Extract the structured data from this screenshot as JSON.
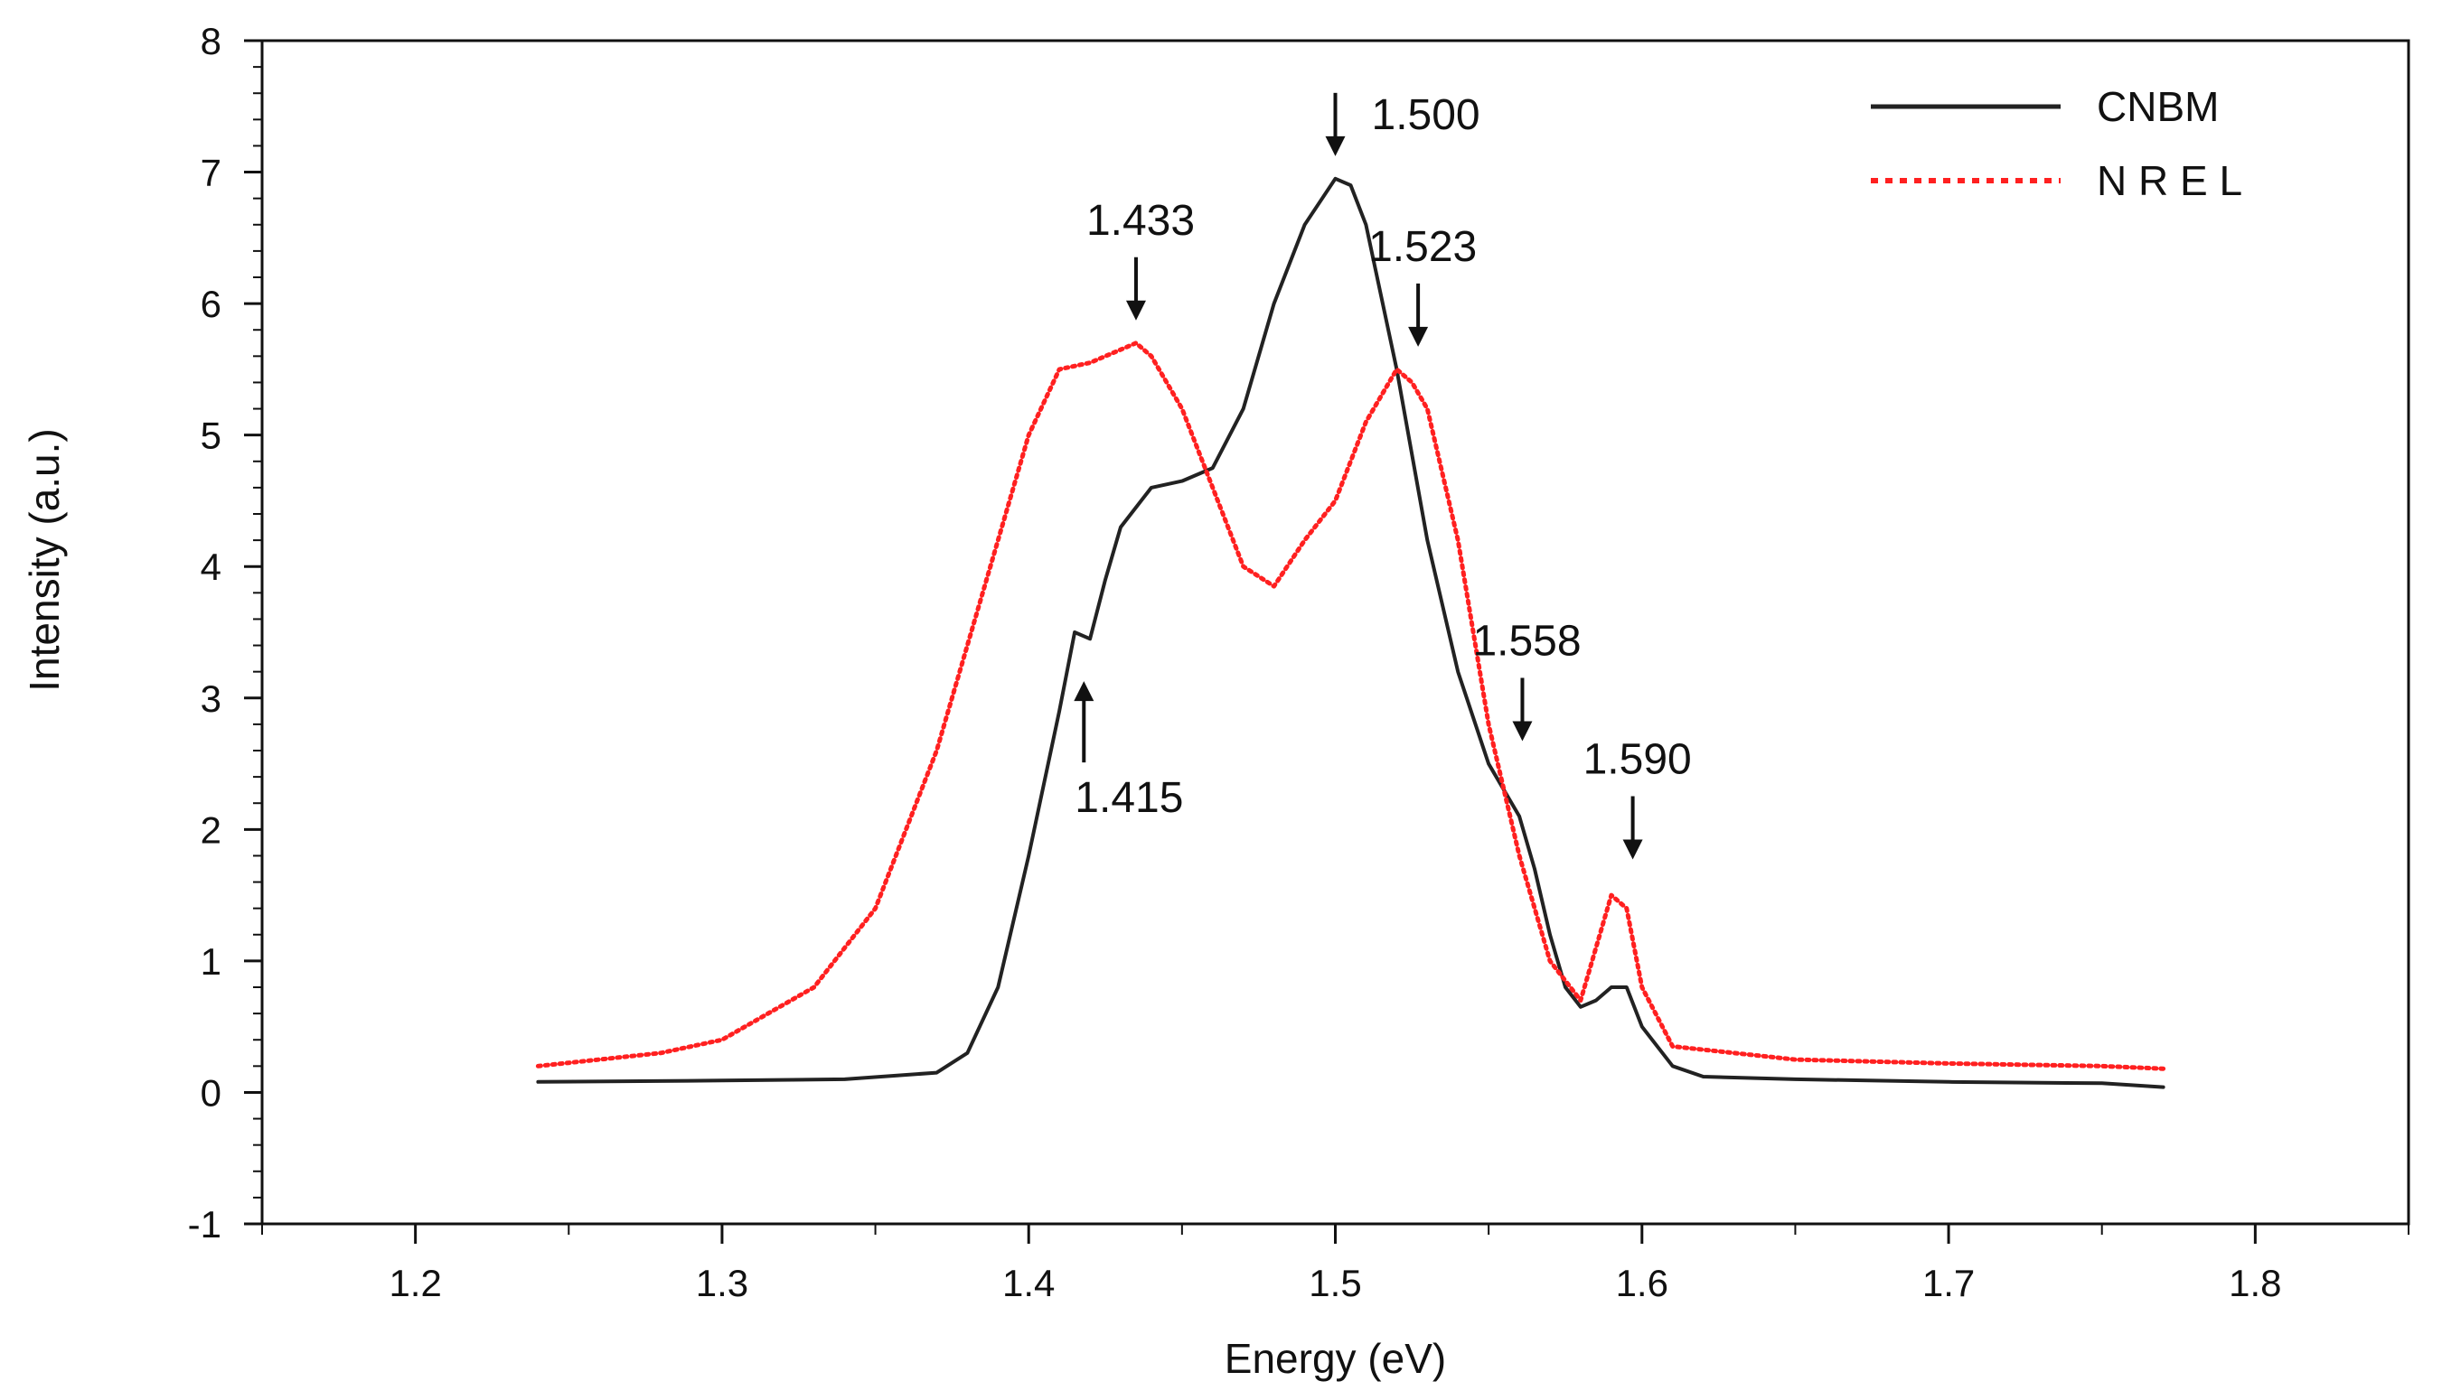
{
  "chart_data": {
    "type": "line",
    "title": "",
    "xlabel": "Energy  (eV)",
    "ylabel": "Intensity (a.u.)",
    "xlim": [
      1.15,
      1.85
    ],
    "ylim": [
      -1,
      8
    ],
    "x_ticks": [
      1.2,
      1.3,
      1.4,
      1.5,
      1.6,
      1.7,
      1.8
    ],
    "x_tick_labels": [
      "1.2",
      "1.3",
      "1.4",
      "1.5",
      "1.6",
      "1.7",
      "1.8"
    ],
    "y_ticks": [
      -1,
      0,
      1,
      2,
      3,
      4,
      5,
      6,
      7,
      8
    ],
    "y_tick_labels": [
      "-1",
      "0",
      "1",
      "2",
      "3",
      "4",
      "5",
      "6",
      "7",
      "8"
    ],
    "grid": false,
    "legend_position": "top-right",
    "series": [
      {
        "name": "CNBM",
        "color": "#222222",
        "style": "solid",
        "x": [
          1.24,
          1.3,
          1.34,
          1.37,
          1.38,
          1.39,
          1.4,
          1.41,
          1.415,
          1.42,
          1.425,
          1.43,
          1.44,
          1.45,
          1.46,
          1.47,
          1.48,
          1.49,
          1.5,
          1.505,
          1.51,
          1.52,
          1.53,
          1.54,
          1.55,
          1.56,
          1.565,
          1.57,
          1.575,
          1.58,
          1.585,
          1.59,
          1.595,
          1.6,
          1.61,
          1.62,
          1.65,
          1.7,
          1.75,
          1.77
        ],
        "values": [
          0.08,
          0.09,
          0.1,
          0.15,
          0.3,
          0.8,
          1.8,
          2.9,
          3.5,
          3.45,
          3.9,
          4.3,
          4.6,
          4.65,
          4.75,
          5.2,
          6.0,
          6.6,
          6.95,
          6.9,
          6.6,
          5.5,
          4.2,
          3.2,
          2.5,
          2.1,
          1.7,
          1.2,
          0.8,
          0.65,
          0.7,
          0.8,
          0.8,
          0.5,
          0.2,
          0.12,
          0.1,
          0.08,
          0.07,
          0.04
        ]
      },
      {
        "name": "N R E L",
        "color": "#ff2020",
        "style": "dotted",
        "x": [
          1.24,
          1.28,
          1.3,
          1.33,
          1.35,
          1.37,
          1.39,
          1.4,
          1.41,
          1.42,
          1.43,
          1.435,
          1.44,
          1.45,
          1.46,
          1.47,
          1.48,
          1.49,
          1.5,
          1.51,
          1.52,
          1.525,
          1.53,
          1.54,
          1.55,
          1.56,
          1.57,
          1.58,
          1.585,
          1.59,
          1.595,
          1.6,
          1.61,
          1.65,
          1.7,
          1.75,
          1.77
        ],
        "values": [
          0.2,
          0.3,
          0.4,
          0.8,
          1.4,
          2.6,
          4.2,
          5.0,
          5.5,
          5.55,
          5.65,
          5.7,
          5.6,
          5.2,
          4.6,
          4.0,
          3.85,
          4.2,
          4.5,
          5.1,
          5.5,
          5.4,
          5.2,
          4.2,
          2.8,
          1.8,
          1.0,
          0.7,
          1.1,
          1.5,
          1.4,
          0.8,
          0.35,
          0.25,
          0.22,
          0.2,
          0.18
        ]
      }
    ],
    "annotations": [
      {
        "label": "1.500",
        "x": 1.5,
        "y": 6.95,
        "direction": "down"
      },
      {
        "label": "1.433",
        "x": 1.435,
        "y": 5.7,
        "direction": "down"
      },
      {
        "label": "1.523",
        "x": 1.527,
        "y": 5.5,
        "direction": "down"
      },
      {
        "label": "1.558",
        "x": 1.561,
        "y": 2.5,
        "direction": "down"
      },
      {
        "label": "1.590",
        "x": 1.597,
        "y": 1.6,
        "direction": "down"
      },
      {
        "label": "1.415",
        "x": 1.418,
        "y": 3.3,
        "direction": "up"
      }
    ]
  }
}
